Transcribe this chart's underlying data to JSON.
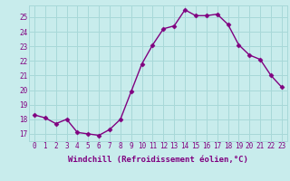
{
  "x": [
    0,
    1,
    2,
    3,
    4,
    5,
    6,
    7,
    8,
    9,
    10,
    11,
    12,
    13,
    14,
    15,
    16,
    17,
    18,
    19,
    20,
    21,
    22,
    23
  ],
  "y": [
    18.3,
    18.1,
    17.7,
    18.0,
    17.1,
    17.0,
    16.9,
    17.3,
    18.0,
    19.9,
    21.8,
    23.1,
    24.2,
    24.4,
    25.5,
    25.1,
    25.1,
    25.2,
    24.5,
    23.1,
    22.4,
    22.1,
    21.0,
    20.2
  ],
  "xlabel": "Windchill (Refroidissement éolien,°C)",
  "ylabel_ticks": [
    17,
    18,
    19,
    20,
    21,
    22,
    23,
    24,
    25
  ],
  "ylim": [
    16.5,
    25.8
  ],
  "xlim": [
    -0.5,
    23.5
  ],
  "line_color": "#800080",
  "marker": "D",
  "marker_size": 2.5,
  "linewidth": 1.0,
  "background_color": "#c8ecec",
  "grid_color": "#a8d8d8",
  "tick_color": "#800080",
  "label_color": "#800080",
  "tick_fontsize": 5.5,
  "xlabel_fontsize": 6.5
}
